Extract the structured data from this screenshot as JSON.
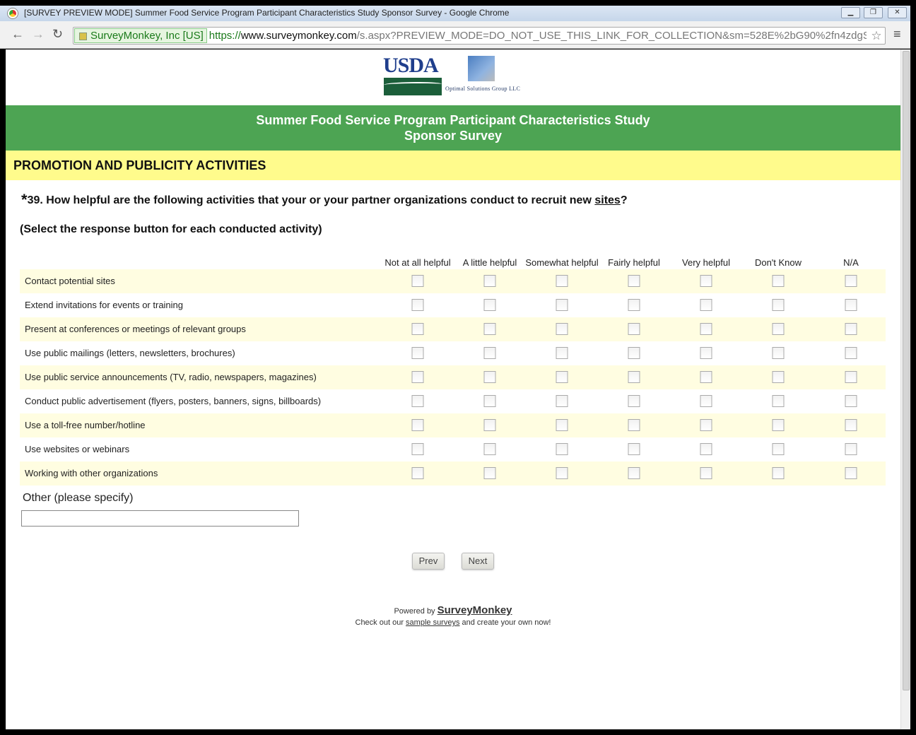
{
  "window": {
    "title": "[SURVEY PREVIEW MODE] Summer Food Service Program Participant Characteristics Study Sponsor Survey - Google Chrome"
  },
  "browser": {
    "ev_label": "SurveyMonkey, Inc [US]",
    "url_scheme": "https://",
    "url_host": "www.surveymonkey.com",
    "url_path": "/s.aspx?PREVIEW_MODE=DO_NOT_USE_THIS_LINK_FOR_COLLECTION&sm=528E%2bG90%2fn4zdgS("
  },
  "logos": {
    "usda": "USDA",
    "osg": "Optimal Solutions Group LLC"
  },
  "survey": {
    "title_line1": "Summer Food Service Program Participant Characteristics Study",
    "title_line2": "Sponsor Survey",
    "section": "PROMOTION AND PUBLICITY ACTIVITIES",
    "question_required": "*",
    "question_prefix": "39. How helpful are the following activities that your or your partner organizations conduct to recruit new ",
    "question_link": "sites",
    "question_suffix": "?",
    "instruction": "(Select the response button for each conducted activity)",
    "columns": [
      "Not at all helpful",
      "A little helpful",
      "Somewhat helpful",
      "Fairly helpful",
      "Very helpful",
      "Don't Know",
      "N/A"
    ],
    "rows": [
      "Contact potential sites",
      "Extend invitations for events or training",
      "Present at conferences or meetings of relevant groups",
      "Use public mailings (letters, newsletters, brochures)",
      "Use public service announcements (TV, radio, newspapers, magazines)",
      "Conduct public advertisement (flyers, posters, banners, signs, billboards)",
      "Use a toll-free number/hotline",
      "Use websites or webinars",
      "Working with other organizations"
    ],
    "other_label": "Other (please specify)",
    "other_value": "",
    "prev": "Prev",
    "next": "Next"
  },
  "footer": {
    "powered_by": "Powered by ",
    "brand": "SurveyMonkey",
    "check_prefix": "Check out our ",
    "sample_link": "sample surveys",
    "check_suffix": " and create your own now!"
  },
  "colors": {
    "banner": "#4da453",
    "section": "#fffb8c",
    "row_alt": "#fffde1"
  }
}
